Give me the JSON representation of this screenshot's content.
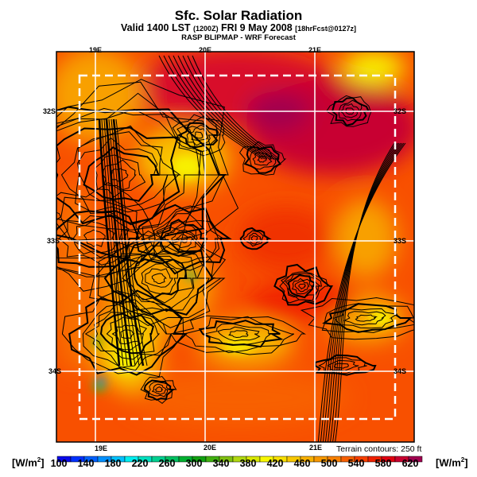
{
  "header": {
    "title": "Sfc. Solar Radiation",
    "valid_main": "Valid 1400 LST",
    "valid_utc": "(1200Z)",
    "valid_date": "FRI 9 May 2008",
    "forecast_tag": "[18hrFcst@0127z]",
    "subtitle": "RASP BLIPMAP - WRF Forecast"
  },
  "map": {
    "lon_labels_top": [
      "19E",
      "20E",
      "21E"
    ],
    "lon_labels_bottom": [
      "19E",
      "20E",
      "21E"
    ],
    "lat_labels_left": [
      "32S",
      "33S",
      "34S"
    ],
    "lat_labels_right": [
      "32S",
      "33S",
      "34S"
    ],
    "terrain_note": "Terrain contours: 250 ft"
  },
  "colorbar": {
    "unit_left": "[W/m",
    "unit_right": "[W/m",
    "unit_sup": "2",
    "unit_close": "]",
    "tick_labels": [
      "100",
      "140",
      "180",
      "220",
      "260",
      "300",
      "340",
      "380",
      "420",
      "460",
      "500",
      "540",
      "580",
      "620"
    ],
    "colors": [
      "#0a0aeb",
      "#0030ff",
      "#0060ff",
      "#0090ff",
      "#00c0ff",
      "#00eef0",
      "#00e0c0",
      "#00d090",
      "#00c060",
      "#00b030",
      "#10a010",
      "#40b010",
      "#80c010",
      "#b0d810",
      "#d8e800",
      "#f8f800",
      "#f8e000",
      "#f8c800",
      "#f8b000",
      "#f89800",
      "#f88000",
      "#f86000",
      "#f84000",
      "#f02000",
      "#e00010",
      "#c80030",
      "#a00050"
    ]
  }
}
